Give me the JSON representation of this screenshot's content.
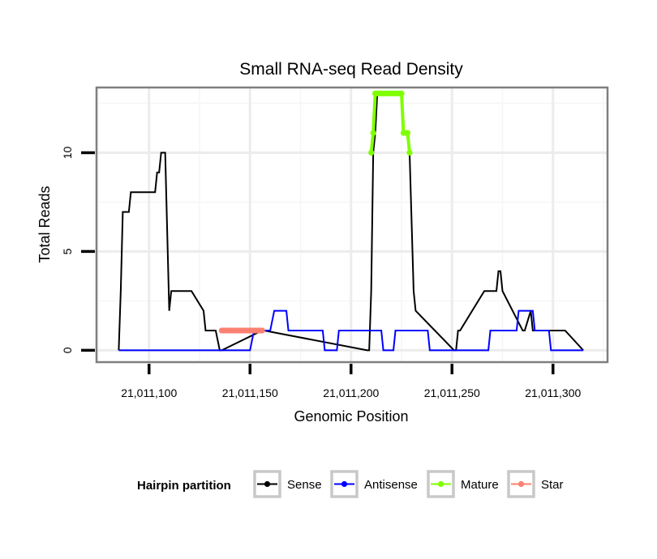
{
  "chart_data": {
    "type": "line",
    "title": "Small RNA-seq Read Density",
    "xlabel": "Genomic Position",
    "ylabel": "Total Reads",
    "xlim": [
      21011074,
      21011327
    ],
    "ylim": [
      -0.6,
      13.3
    ],
    "x_ticks": [
      21011100,
      21011150,
      21011200,
      21011250,
      21011300
    ],
    "x_tick_labels": [
      "21,011,100",
      "21,011,150",
      "21,011,200",
      "21,011,250",
      "21,011,300"
    ],
    "y_ticks": [
      0,
      5,
      10
    ],
    "y_tick_labels": [
      "0",
      "5",
      "10"
    ],
    "grid": true,
    "legend": {
      "title": "Hairpin partition",
      "position": "bottom",
      "entries": [
        "Sense",
        "Antisense",
        "Mature",
        "Star"
      ]
    },
    "colors": {
      "Sense": "#000000",
      "Antisense": "#0000ff",
      "Mature": "#7fff00",
      "Star": "#fa8072"
    },
    "series": [
      {
        "name": "Sense",
        "x": [
          21011085,
          21011086,
          21011087,
          21011088,
          21011089,
          21011090,
          21011091,
          21011097,
          21011098,
          21011099,
          21011103,
          21011104,
          21011105,
          21011106,
          21011108,
          21011109,
          21011110,
          21011111,
          21011120,
          21011121,
          21011127,
          21011128,
          21011132,
          21011133,
          21011135,
          21011136,
          21011156,
          21011157,
          21011208,
          21011209,
          21011210,
          21011211,
          21011212,
          21011213,
          21011225,
          21011226,
          21011228,
          21011229,
          21011231,
          21011232,
          21011251,
          21011252,
          21011253,
          21011254,
          21011266,
          21011267,
          21011272,
          21011273,
          21011274,
          21011275,
          21011285,
          21011286,
          21011289,
          21011290,
          21011305,
          21011306,
          21011315
        ],
        "y": [
          0,
          3,
          7,
          7,
          7,
          7,
          8,
          8,
          8,
          8,
          8,
          9,
          9,
          10,
          10,
          6,
          2,
          3,
          3,
          3,
          2,
          1,
          1,
          1,
          0,
          0,
          1,
          1,
          0,
          0,
          3,
          10,
          11,
          13,
          13,
          11,
          11,
          10,
          3,
          2,
          0,
          0,
          1,
          1,
          3,
          3,
          3,
          4,
          4,
          3,
          1,
          1,
          2,
          1,
          1,
          1,
          0
        ]
      },
      {
        "name": "Antisense",
        "x": [
          21011085,
          21011086,
          21011087,
          21011088,
          21011089,
          21011090,
          21011091,
          21011097,
          21011098,
          21011099,
          21011103,
          21011104,
          21011105,
          21011106,
          21011108,
          21011109,
          21011110,
          21011111,
          21011120,
          21011121,
          21011127,
          21011128,
          21011132,
          21011133,
          21011135,
          21011136,
          21011150,
          21011152,
          21011160,
          21011162,
          21011164,
          21011165,
          21011168,
          21011169,
          21011186,
          21011187,
          21011193,
          21011194,
          21011200,
          21011215,
          21011216,
          21011218,
          21011219,
          21011221,
          21011222,
          21011238,
          21011239,
          21011250,
          21011268,
          21011269,
          21011271,
          21011272,
          21011282,
          21011283,
          21011290,
          21011291,
          21011298,
          21011299,
          21011305,
          21011306,
          21011315
        ],
        "y": [
          0,
          0,
          0,
          0,
          0,
          0,
          0,
          0,
          0,
          0,
          0,
          0,
          0,
          0,
          0,
          0,
          0,
          0,
          0,
          0,
          0,
          0,
          0,
          0,
          0,
          0,
          0,
          1,
          1,
          2,
          2,
          2,
          2,
          1,
          1,
          0,
          0,
          1,
          1,
          1,
          0,
          0,
          0,
          0,
          1,
          1,
          0,
          0,
          0,
          1,
          1,
          1,
          1,
          2,
          2,
          1,
          1,
          0,
          0,
          0,
          0
        ]
      },
      {
        "name": "Mature",
        "x": [
          21011210,
          21011211,
          21011212,
          21011213,
          21011214,
          21011215,
          21011216,
          21011217,
          21011218,
          21011219,
          21011220,
          21011221,
          21011222,
          21011223,
          21011224,
          21011225,
          21011226,
          21011227,
          21011228,
          21011229
        ],
        "y": [
          10,
          11,
          13,
          13,
          13,
          13,
          13,
          13,
          13,
          13,
          13,
          13,
          13,
          13,
          13,
          13,
          11,
          11,
          11,
          10
        ]
      },
      {
        "name": "Star",
        "x": [
          21011136,
          21011137,
          21011138,
          21011139,
          21011140,
          21011141,
          21011142,
          21011143,
          21011144,
          21011145,
          21011146,
          21011147,
          21011148,
          21011149,
          21011150,
          21011151,
          21011152,
          21011153,
          21011154,
          21011155,
          21011156
        ],
        "y": [
          1,
          1,
          1,
          1,
          1,
          1,
          1,
          1,
          1,
          1,
          1,
          1,
          1,
          1,
          1,
          1,
          1,
          1,
          1,
          1,
          1
        ]
      }
    ]
  }
}
